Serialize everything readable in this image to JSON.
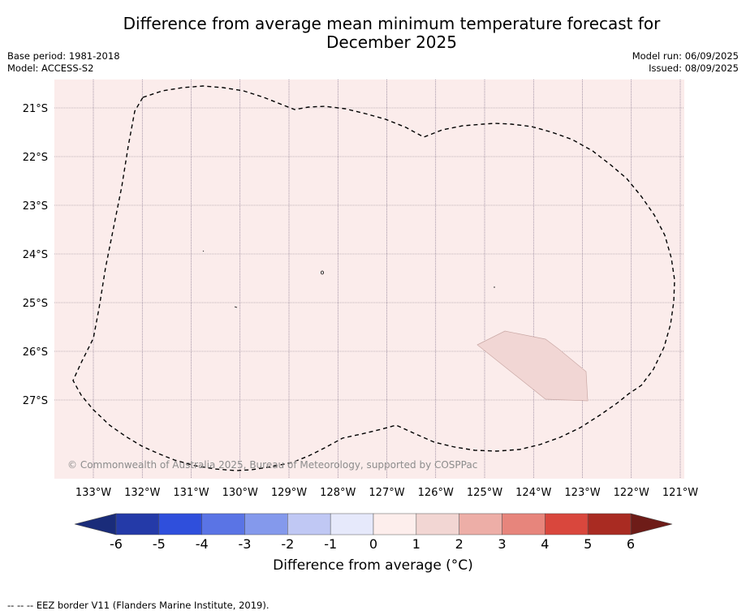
{
  "title_line1": "Difference from average mean minimum temperature forecast for",
  "title_line2": "December 2025",
  "meta_left": [
    "Base period: 1981-2018",
    "Model: ACCESS-S2"
  ],
  "meta_right": [
    "Model run: 06/09/2025",
    "Issued: 08/09/2025"
  ],
  "map": {
    "lat_labels": [
      "21°S",
      "22°S",
      "23°S",
      "24°S",
      "25°S",
      "26°S",
      "27°S"
    ],
    "lon_labels": [
      "133°W",
      "132°W",
      "131°W",
      "130°W",
      "129°W",
      "128°W",
      "127°W",
      "126°W",
      "125°W",
      "124°W",
      "123°W",
      "122°W",
      "121°W"
    ],
    "copyright": "© Commonwealth of Australia 2025, Bureau of Meteorology, supported by COSPPac",
    "background_color": "#fbeceb",
    "anomaly_patch_color": "#f1d6d4"
  },
  "colorbar": {
    "ticks": [
      "-6",
      "-5",
      "-4",
      "-3",
      "-2",
      "-1",
      "0",
      "1",
      "2",
      "3",
      "4",
      "5",
      "6"
    ],
    "colors": [
      "#243aa8",
      "#2f4fdc",
      "#5a74e5",
      "#8499ec",
      "#c0c8f4",
      "#e6e9fb",
      "#fdeeec",
      "#f2d6d3",
      "#edaea7",
      "#e7857c",
      "#d9473d",
      "#a92b22"
    ],
    "under_color": "#1a2c7a",
    "over_color": "#6e1c18",
    "label": "Difference from average (°C)"
  },
  "footnote": "-- -- -- EEZ border V11 (Flanders Marine Institute, 2019)."
}
